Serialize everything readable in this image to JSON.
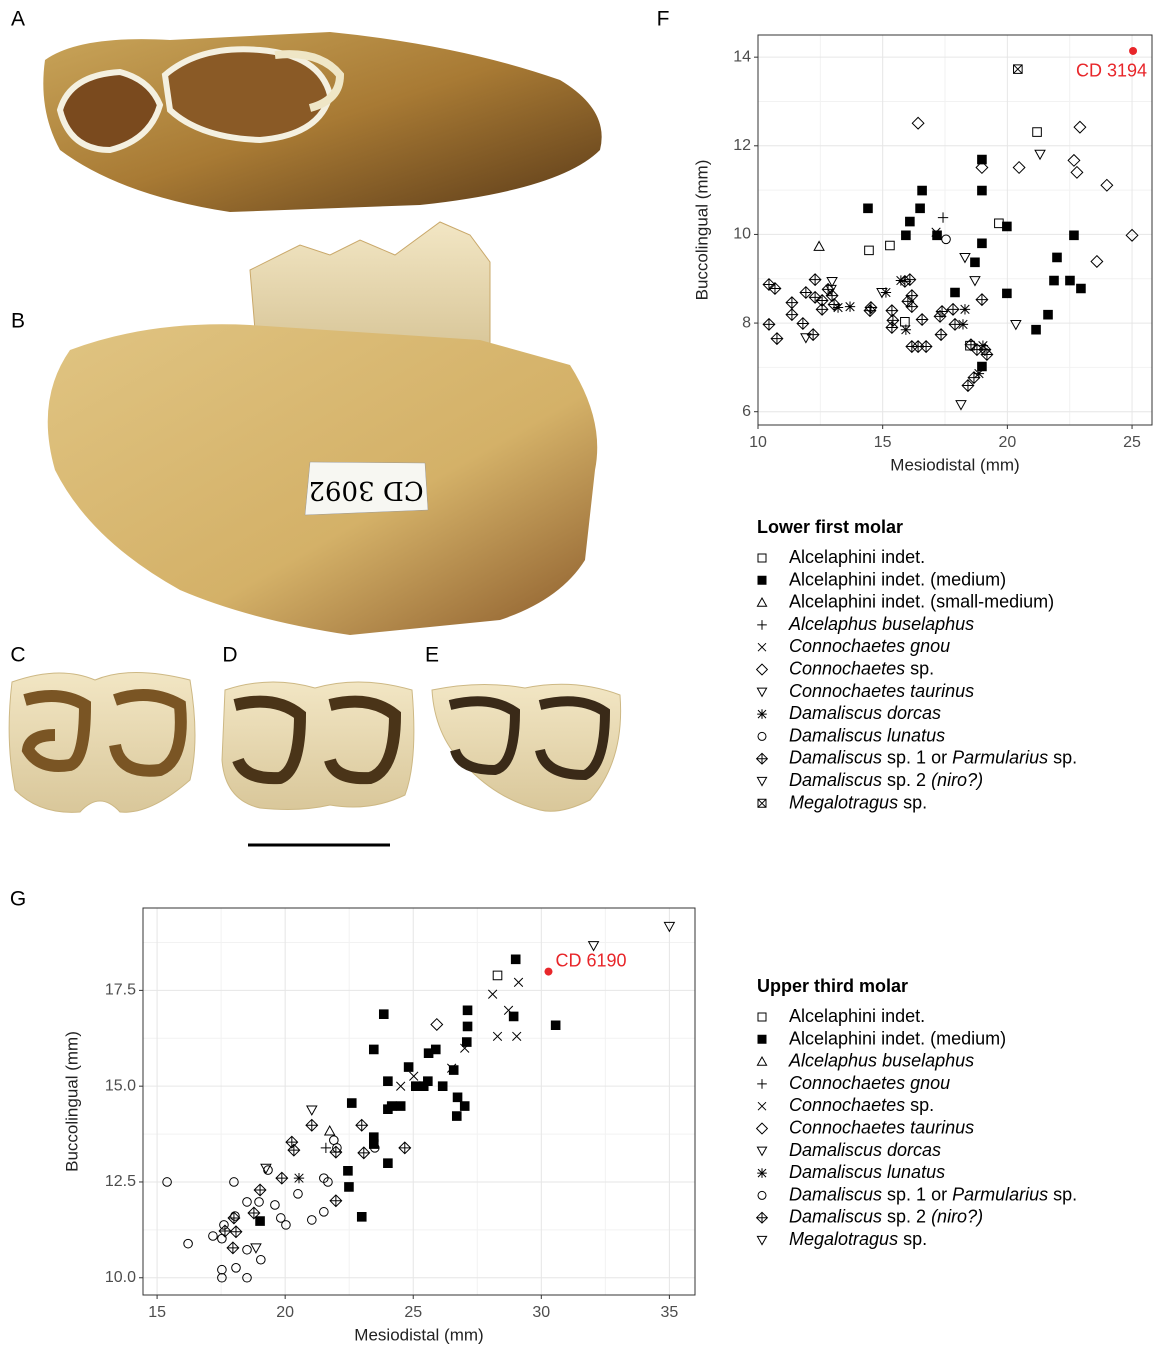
{
  "panel_labels": [
    "A",
    "B",
    "C",
    "D",
    "E",
    "F",
    "G"
  ],
  "specimen_label": "CD 3092",
  "chart_data": [
    {
      "type": "scatter",
      "xlabel": "Mesiodistal (mm)",
      "ylabel": "Buccolingual (mm)",
      "xlim": [
        10,
        25.8
      ],
      "ylim": [
        5.7,
        14.5
      ],
      "xticks": [
        10,
        15,
        20,
        25
      ],
      "yticks": [
        6,
        8,
        10,
        12,
        14
      ],
      "minor_xticks": [
        12.5,
        17.5,
        22.5
      ],
      "minor_yticks": [
        7,
        9,
        11,
        13
      ],
      "grid": true,
      "legend_title": "Lower first molar",
      "legend_position": "below",
      "annotations": [
        {
          "x": 25.04,
          "y": 14.14,
          "text": "CD 3194",
          "color": "#e8262a",
          "label_side": "below"
        }
      ],
      "series": [
        {
          "name": "Alcelaphini indet.",
          "marker": "square",
          "color": "#000000",
          "italic": [
            false,
            false
          ],
          "x": [
            14.45,
            15.29,
            21.19,
            19.66,
            15.89,
            18.5
          ],
          "values": [
            9.64,
            9.75,
            12.31,
            10.25,
            8.03,
            7.49
          ]
        },
        {
          "name": "Alcelaphini indet. (medium)",
          "marker": "square-filled",
          "color": "#000000",
          "italic": [
            false,
            false,
            false
          ],
          "x": [
            14.41,
            16.09,
            15.93,
            16.58,
            16.5,
            17.18,
            18.98,
            18.98,
            18.98,
            19.98,
            18.7,
            17.9,
            19.98,
            21.15,
            21.63,
            21.99,
            21.87,
            22.51,
            22.67,
            22.95,
            18.98
          ],
          "values": [
            10.59,
            10.29,
            9.98,
            10.99,
            10.59,
            9.98,
            11.69,
            10.99,
            9.8,
            10.18,
            9.37,
            8.69,
            8.67,
            7.85,
            8.19,
            9.48,
            8.96,
            8.96,
            9.98,
            8.78,
            7.02
          ]
        },
        {
          "name": "Alcelaphini indet. (small-medium)",
          "marker": "triangle",
          "color": "#000000",
          "italic": [
            false,
            false,
            false
          ],
          "x": [
            12.45
          ],
          "values": [
            9.73
          ]
        },
        {
          "name": "Alcelaphus buselaphus",
          "marker": "plus",
          "color": "#000000",
          "italic": [
            true,
            true
          ],
          "x": [
            17.42
          ],
          "values": [
            10.38
          ]
        },
        {
          "name": "Connochaetes gnou",
          "marker": "x",
          "color": "#000000",
          "italic": [
            true,
            true
          ],
          "x": [
            17.14
          ],
          "values": [
            10.05
          ]
        },
        {
          "name": "Connochaetes sp.",
          "marker": "diamond",
          "color": "#000000",
          "italic": [
            true,
            false
          ],
          "x": [
            16.42,
            22.91,
            22.67,
            22.79,
            23.99,
            20.47,
            18.98,
            25.0,
            23.59
          ],
          "values": [
            12.51,
            12.42,
            11.67,
            11.4,
            11.11,
            11.51,
            11.51,
            9.98,
            9.39
          ]
        },
        {
          "name": "Connochaetes taurinus",
          "marker": "triangle-down",
          "color": "#000000",
          "italic": [
            true,
            true
          ],
          "x": [
            21.31,
            12.97,
            12.93,
            11.92,
            14.97,
            18.3,
            18.7
          ],
          "values": [
            11.81,
            8.94,
            8.76,
            7.67,
            8.69,
            9.48,
            8.96
          ]
        },
        {
          "name": "Damaliscus dorcas",
          "marker": "asterisk",
          "color": "#000000",
          "italic": [
            true,
            true
          ],
          "x": [
            13.69,
            13.21,
            15.13,
            15.73,
            15.93,
            18.3,
            18.22,
            18.86,
            19.02
          ],
          "values": [
            8.37,
            8.35,
            8.69,
            8.96,
            7.85,
            8.31,
            7.97,
            6.86,
            7.49
          ]
        },
        {
          "name": "Damaliscus lunatus",
          "marker": "circle",
          "color": "#000000",
          "italic": [
            true,
            true
          ],
          "x": [
            17.54
          ],
          "values": [
            9.89
          ]
        },
        {
          "name": "Damaliscus sp. 1 or Parmularius sp.",
          "marker": "diamond-plus",
          "color": "#000000",
          "italic": [
            true,
            false,
            false,
            false,
            true,
            false
          ],
          "x": [
            10.44,
            10.68,
            10.44,
            10.76,
            11.36,
            11.36,
            11.8,
            11.92,
            12.29,
            12.29,
            12.21,
            12.57,
            12.81,
            12.97,
            12.57,
            13.05,
            14.49,
            14.53,
            15.37,
            15.37,
            15.89,
            16.01,
            16.09,
            16.17,
            16.17,
            16.17,
            16.42,
            16.74,
            15.41,
            16.58,
            17.3,
            17.34,
            17.38,
            17.82,
            17.9,
            18.54,
            19.1,
            18.78,
            19.18,
            18.42,
            18.66,
            18.98
          ],
          "values": [
            8.87,
            8.78,
            7.97,
            7.65,
            8.46,
            8.19,
            7.99,
            8.69,
            8.98,
            8.58,
            7.74,
            8.51,
            8.76,
            8.62,
            8.31,
            8.42,
            8.28,
            8.35,
            8.28,
            7.9,
            8.94,
            8.49,
            8.98,
            8.62,
            8.37,
            7.47,
            7.47,
            7.47,
            8.06,
            8.08,
            8.15,
            7.74,
            8.26,
            8.31,
            7.97,
            7.51,
            7.4,
            7.4,
            7.29,
            6.59,
            6.77,
            8.53
          ]
        },
        {
          "name": "Damaliscus sp. 2 (niro?)",
          "marker": "triangle-down",
          "color": "#000000",
          "italic": [
            true,
            false,
            false,
            true
          ],
          "x": [
            18.14,
            20.34
          ],
          "values": [
            6.16,
            7.97
          ]
        },
        {
          "name": "Megalotragus sp.",
          "marker": "square-x",
          "color": "#000000",
          "italic": [
            true,
            false
          ],
          "x": [
            20.42
          ],
          "values": [
            13.73
          ]
        }
      ]
    },
    {
      "type": "scatter",
      "xlabel": "Mesiodistal (mm)",
      "ylabel": "Buccolingual (mm)",
      "xlim": [
        14.45,
        36
      ],
      "ylim": [
        9.55,
        19.65
      ],
      "xticks": [
        15,
        20,
        25,
        30,
        35
      ],
      "yticks": [
        {
          "value": 10,
          "label": "10.0"
        },
        {
          "value": 12.5,
          "label": "12.5"
        },
        {
          "value": 15,
          "label": "15.0"
        },
        {
          "value": 17.5,
          "label": "17.5"
        }
      ],
      "minor_xticks": [
        17.5,
        22.5,
        27.5,
        32.5
      ],
      "minor_yticks": [
        11.25,
        13.75,
        16.25,
        18.75
      ],
      "grid": true,
      "legend_title": "Upper third molar",
      "legend_position": "right",
      "annotations": [
        {
          "x": 30.28,
          "y": 17.99,
          "text": "CD 6190",
          "color": "#e8262a",
          "label_side": "right"
        }
      ],
      "series": [
        {
          "name": "Alcelaphini indet.",
          "marker": "square",
          "color": "#000000",
          "italic": [
            false,
            false
          ],
          "x": [
            28.29
          ],
          "values": [
            17.89
          ]
        },
        {
          "name": "Alcelaphini indet. (medium)",
          "marker": "square-filled",
          "color": "#000000",
          "italic": [
            false,
            false,
            false
          ],
          "x": [
            23.85,
            23.46,
            22.6,
            22.45,
            22.49,
            22.99,
            23.46,
            23.46,
            24.01,
            24.01,
            24.01,
            24.16,
            24.51,
            24.82,
            25.1,
            25.41,
            25.6,
            25.88,
            26.15,
            26.73,
            26.7,
            27.01,
            27.12,
            27.12,
            27.09,
            26.58,
            28.92,
            29.0,
            30.56,
            25.57,
            19.02
          ],
          "values": [
            16.88,
            15.96,
            14.56,
            12.79,
            12.37,
            11.59,
            13.67,
            13.49,
            12.99,
            15.13,
            14.4,
            14.48,
            14.48,
            15.5,
            15.0,
            15.0,
            15.86,
            15.96,
            15.0,
            14.71,
            14.22,
            14.48,
            16.98,
            16.56,
            16.15,
            15.42,
            16.82,
            18.31,
            16.59,
            15.13,
            11.48
          ]
        },
        {
          "name": "Alcelaphus buselaphus",
          "marker": "triangle",
          "color": "#000000",
          "italic": [
            true,
            true
          ],
          "x": [
            21.74
          ],
          "values": [
            13.83
          ]
        },
        {
          "name": "Connochaetes gnou",
          "marker": "plus",
          "color": "#000000",
          "italic": [
            true,
            true
          ],
          "x": [
            21.59
          ],
          "values": [
            13.39
          ]
        },
        {
          "name": "Connochaetes sp.",
          "marker": "x",
          "color": "#000000",
          "italic": [
            true,
            false
          ],
          "x": [
            24.51,
            25.02,
            26.5,
            27.01,
            28.1,
            28.29,
            28.72,
            29.11,
            29.04
          ],
          "values": [
            15.0,
            15.26,
            15.47,
            15.99,
            17.4,
            16.3,
            16.98,
            17.71,
            16.3
          ]
        },
        {
          "name": "Connochaetes taurinus",
          "marker": "diamond",
          "color": "#000000",
          "italic": [
            true,
            true
          ],
          "x": [
            25.92
          ],
          "values": [
            16.61
          ]
        },
        {
          "name": "Damaliscus dorcas",
          "marker": "triangle-down",
          "color": "#000000",
          "italic": [
            true,
            true
          ],
          "x": [
            21.04,
            19.25,
            18.86
          ],
          "values": [
            14.38,
            12.86,
            10.78
          ]
        },
        {
          "name": "Damaliscus lunatus",
          "marker": "asterisk",
          "color": "#000000",
          "italic": [
            true,
            true
          ],
          "x": [
            20.54
          ],
          "values": [
            12.6
          ]
        },
        {
          "name": "Damaliscus sp. 1 or Parmularius sp.",
          "marker": "circle",
          "color": "#000000",
          "italic": [
            true,
            false,
            false,
            false,
            true,
            false
          ],
          "x": [
            15.39,
            16.21,
            17.18,
            17.53,
            17.61,
            17.53,
            17.53,
            18.0,
            18.04,
            18.08,
            18.51,
            18.51,
            18.51,
            18.98,
            19.05,
            19.33,
            19.6,
            19.83,
            20.03,
            20.5,
            21.04,
            21.51,
            21.51,
            21.67,
            21.9,
            22.02,
            23.5
          ],
          "values": [
            12.5,
            10.89,
            11.09,
            11.02,
            11.38,
            10.21,
            10.0,
            12.5,
            11.61,
            10.26,
            11.98,
            10.73,
            10.0,
            11.98,
            10.47,
            12.81,
            11.9,
            11.56,
            11.38,
            12.19,
            11.51,
            11.72,
            12.6,
            12.5,
            13.59,
            13.39,
            13.39
          ]
        },
        {
          "name": "Damaliscus sp. 2 (niro?)",
          "marker": "diamond-plus",
          "color": "#000000",
          "italic": [
            true,
            false,
            false,
            true
          ],
          "x": [
            17.65,
            18.0,
            18.08,
            17.96,
            18.78,
            19.02,
            19.87,
            20.26,
            20.34,
            21.04,
            21.98,
            22.99,
            23.07,
            24.67,
            21.98
          ],
          "values": [
            11.22,
            11.56,
            11.2,
            10.78,
            11.69,
            12.29,
            12.6,
            13.54,
            13.33,
            13.98,
            13.28,
            13.98,
            13.26,
            13.39,
            12.01
          ]
        },
        {
          "name": "Megalotragus sp.",
          "marker": "triangle-down",
          "color": "#000000",
          "italic": [
            true,
            false
          ],
          "x": [
            32.04,
            35.0
          ],
          "values": [
            18.67,
            19.17
          ]
        }
      ]
    }
  ]
}
